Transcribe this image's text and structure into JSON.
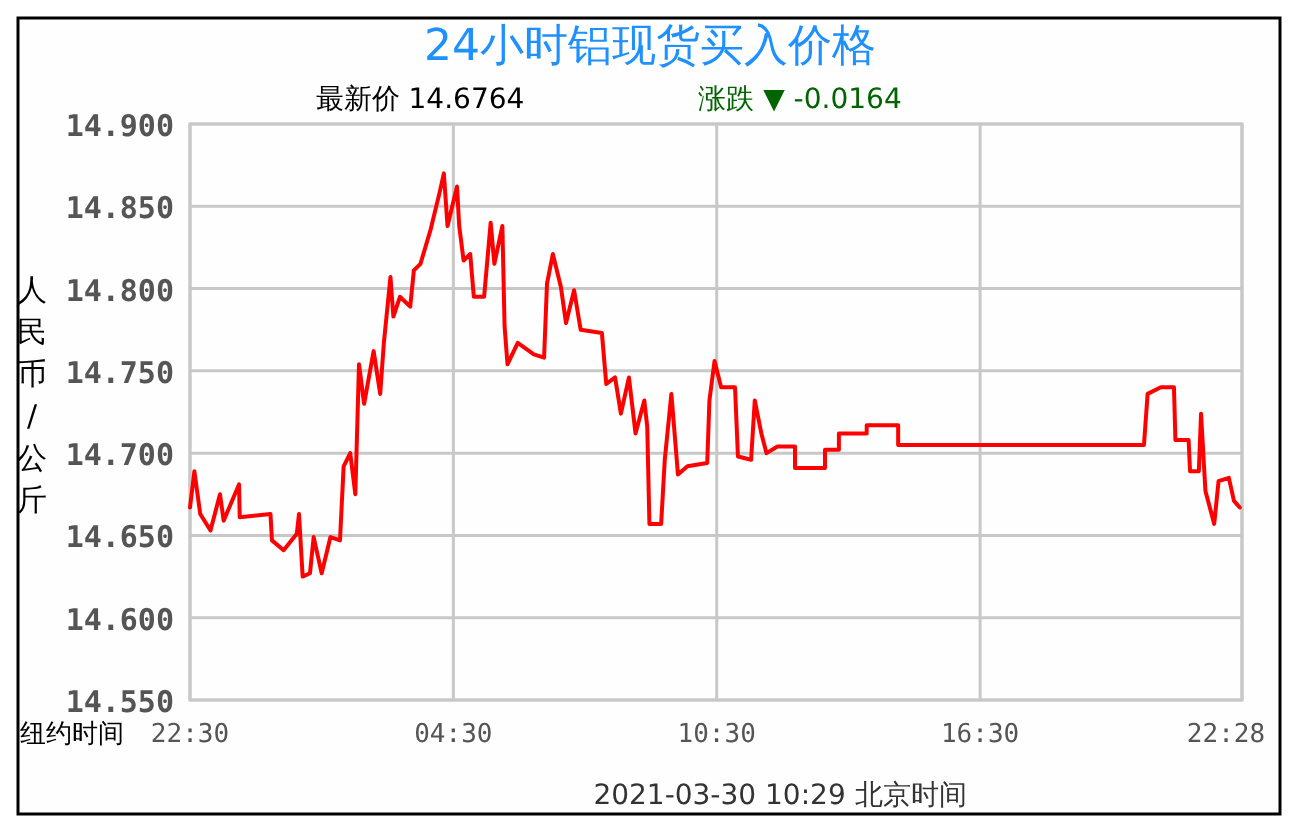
{
  "chart_data": {
    "type": "line",
    "title": "24小时铝现货买入价格",
    "xlabel": "纽约时间",
    "ylabel": "人民币/公斤",
    "annotations": [
      "最新价 14.6764",
      "涨跌 ▼ -0.0164",
      "2021-03-30 10:29 北京时间"
    ],
    "xlim": [
      "2021-03-29T22:30",
      "2021-03-30T22:28"
    ],
    "xticks": [
      {
        "value": "2021-03-29T22:30",
        "label": "22:30"
      },
      {
        "value": "2021-03-30T04:30",
        "label": "04:30"
      },
      {
        "value": "2021-03-30T10:30",
        "label": "10:30"
      },
      {
        "value": "2021-03-30T16:30",
        "label": "16:30"
      },
      {
        "value": "2021-03-30T22:28",
        "label": "22:28"
      }
    ],
    "ylim": [
      14.55,
      14.9
    ],
    "yticks": [
      {
        "value": 14.55,
        "label": "14.550"
      },
      {
        "value": 14.6,
        "label": "14.600"
      },
      {
        "value": 14.65,
        "label": "14.650"
      },
      {
        "value": 14.7,
        "label": "14.700"
      },
      {
        "value": 14.75,
        "label": "14.750"
      },
      {
        "value": 14.8,
        "label": "14.800"
      },
      {
        "value": 14.85,
        "label": "14.850"
      },
      {
        "value": 14.9,
        "label": "14.900"
      }
    ],
    "grid": true,
    "marker": "none",
    "line_style": "solid",
    "series": [
      {
        "color": "#ff0000",
        "x": [
          "2021-03-29T22:30",
          "2021-03-29T22:36",
          "2021-03-29T22:44",
          "2021-03-29T22:58",
          "2021-03-29T23:11",
          "2021-03-29T23:16",
          "2021-03-29T23:37",
          "2021-03-29T23:38",
          "2021-03-30T00:20",
          "2021-03-30T00:22",
          "2021-03-30T00:38",
          "2021-03-30T00:56",
          "2021-03-30T00:59",
          "2021-03-30T01:04",
          "2021-03-30T01:14",
          "2021-03-30T01:19",
          "2021-03-30T01:30",
          "2021-03-30T01:42",
          "2021-03-30T01:55",
          "2021-03-30T02:00",
          "2021-03-30T02:09",
          "2021-03-30T02:16",
          "2021-03-30T02:21",
          "2021-03-30T02:28",
          "2021-03-30T02:41",
          "2021-03-30T02:50",
          "2021-03-30T02:55",
          "2021-03-30T03:04",
          "2021-03-30T03:08",
          "2021-03-30T03:17",
          "2021-03-30T03:31",
          "2021-03-30T03:36",
          "2021-03-30T03:45",
          "2021-03-30T03:59",
          "2021-03-30T04:11",
          "2021-03-30T04:17",
          "2021-03-30T04:22",
          "2021-03-30T04:35",
          "2021-03-30T04:38",
          "2021-03-30T04:44",
          "2021-03-30T04:53",
          "2021-03-30T04:58",
          "2021-03-30T05:12",
          "2021-03-30T05:21",
          "2021-03-30T05:26",
          "2021-03-30T05:37",
          "2021-03-30T05:40",
          "2021-03-30T05:44",
          "2021-03-30T05:58",
          "2021-03-30T06:20",
          "2021-03-30T06:34",
          "2021-03-30T06:38",
          "2021-03-30T06:46",
          "2021-03-30T06:57",
          "2021-03-30T07:04",
          "2021-03-30T07:15",
          "2021-03-30T07:24",
          "2021-03-30T07:53",
          "2021-03-30T07:59",
          "2021-03-30T08:11",
          "2021-03-30T08:19",
          "2021-03-30T08:30",
          "2021-03-30T08:39",
          "2021-03-30T08:51",
          "2021-03-30T08:55",
          "2021-03-30T08:58",
          "2021-03-30T09:14",
          "2021-03-30T09:19",
          "2021-03-30T09:28",
          "2021-03-30T09:37",
          "2021-03-30T09:50",
          "2021-03-30T10:17",
          "2021-03-30T10:20",
          "2021-03-30T10:27",
          "2021-03-30T10:36",
          "2021-03-30T10:55",
          "2021-03-30T10:59",
          "2021-03-30T11:17",
          "2021-03-30T11:22",
          "2021-03-30T11:31",
          "2021-03-30T11:38",
          "2021-03-30T11:53",
          "2021-03-30T12:17",
          "2021-03-30T12:17",
          "2021-03-30T12:58",
          "2021-03-30T12:58",
          "2021-03-30T13:17",
          "2021-03-30T13:17",
          "2021-03-30T13:55",
          "2021-03-30T13:55",
          "2021-03-30T14:38",
          "2021-03-30T14:38",
          "2021-03-30T20:14",
          "2021-03-30T20:19",
          "2021-03-30T20:37",
          "2021-03-30T20:55",
          "2021-03-30T20:57",
          "2021-03-30T21:15",
          "2021-03-30T21:17",
          "2021-03-30T21:29",
          "2021-03-30T21:32",
          "2021-03-30T21:38",
          "2021-03-30T21:50",
          "2021-03-30T21:56",
          "2021-03-30T22:10",
          "2021-03-30T22:17",
          "2021-03-30T22:25"
        ],
        "values": [
          14.667,
          14.689,
          14.663,
          14.653,
          14.675,
          14.659,
          14.681,
          14.661,
          14.663,
          14.647,
          14.641,
          14.651,
          14.663,
          14.625,
          14.627,
          14.649,
          14.627,
          14.649,
          14.647,
          14.692,
          14.7,
          14.675,
          14.754,
          14.73,
          14.762,
          14.736,
          14.767,
          14.807,
          14.783,
          14.795,
          14.789,
          14.811,
          14.815,
          14.836,
          14.858,
          14.87,
          14.838,
          14.862,
          14.838,
          14.817,
          14.821,
          14.795,
          14.795,
          14.84,
          14.815,
          14.838,
          14.777,
          14.754,
          14.767,
          14.76,
          14.758,
          14.803,
          14.821,
          14.801,
          14.779,
          14.799,
          14.775,
          14.773,
          14.742,
          14.746,
          14.724,
          14.746,
          14.712,
          14.732,
          14.716,
          14.657,
          14.657,
          14.696,
          14.736,
          14.687,
          14.692,
          14.694,
          14.732,
          14.756,
          14.74,
          14.74,
          14.698,
          14.696,
          14.732,
          14.712,
          14.7,
          14.704,
          14.704,
          14.691,
          14.691,
          14.702,
          14.702,
          14.712,
          14.712,
          14.717,
          14.717,
          14.705,
          14.705,
          14.736,
          14.74,
          14.74,
          14.708,
          14.708,
          14.689,
          14.689,
          14.724,
          14.677,
          14.657,
          14.683,
          14.685,
          14.671,
          14.667
        ]
      }
    ]
  }
}
